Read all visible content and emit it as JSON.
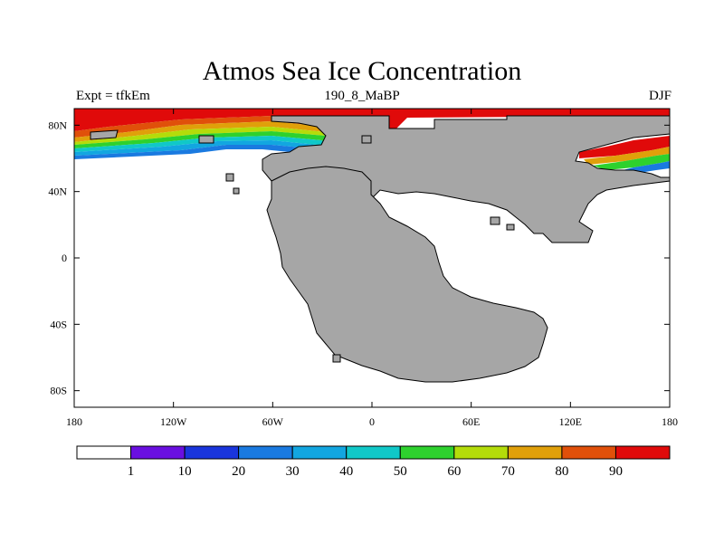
{
  "title": "Atmos Sea Ice Concentration",
  "subtitle_left": "Expt = tfkEm",
  "subtitle_center": "190_8_MaBP",
  "subtitle_right": "DJF",
  "colors": {
    "land": "#a6a6a6",
    "no_ice": "#ffffff"
  },
  "chart_data": {
    "type": "heatmap",
    "map_projection": "cylindrical equidistant",
    "lon_range": [
      -180,
      180
    ],
    "lat_range": [
      -90,
      90
    ],
    "x_ticks": [
      "180",
      "120W",
      "60W",
      "0",
      "60E",
      "120E",
      "180"
    ],
    "y_ticks": [
      "80N",
      "40N",
      "0",
      "40S",
      "80S"
    ],
    "colorbar": {
      "labels": [
        "1",
        "10",
        "20",
        "30",
        "40",
        "50",
        "60",
        "70",
        "80",
        "90"
      ],
      "colors": [
        "#ffffff",
        "#6a0fe0",
        "#1a35dc",
        "#1a7ae0",
        "#12a6e0",
        "#10c8c8",
        "#2ed12e",
        "#b4dc0a",
        "#e0a00a",
        "#e0500a",
        "#e00a0a"
      ]
    }
  }
}
